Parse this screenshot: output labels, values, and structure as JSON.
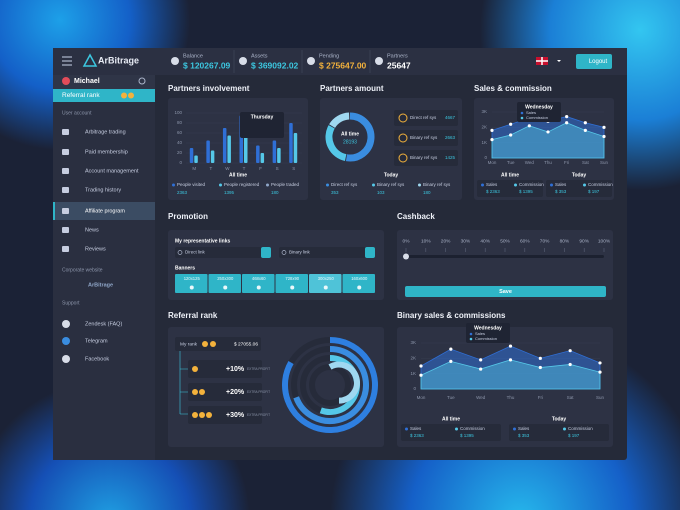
{
  "header": {
    "logo": "ArBitrage",
    "stats": [
      {
        "label": "Balance",
        "value": "$ 120267.09"
      },
      {
        "label": "Assets",
        "value": "$ 369092.02"
      },
      {
        "label": "Pending",
        "value": "$ 275647.00"
      },
      {
        "label": "Partners",
        "value": "25647"
      }
    ],
    "logout": "Logout"
  },
  "sidebar": {
    "user": "Michael",
    "rank": "Referral rank",
    "account_heading": "User account",
    "menu": [
      "Arbitrage trading",
      "Paid membership",
      "Account management",
      "Trading history",
      "Affiliate program",
      "News",
      "Reviews"
    ],
    "active": 4,
    "corporate_heading": "Corporate website",
    "corporate_link": "ArBitrage",
    "support_heading": "Support",
    "support": [
      "Zendesk (FAQ)",
      "Telegram",
      "Facebook"
    ]
  },
  "partners_involvement": {
    "title": "Partners involvement",
    "tooltip": "Thursday",
    "caption": "All time",
    "chart": {
      "type": "bar",
      "categories": [
        "M",
        "T",
        "W",
        "T",
        "F",
        "S",
        "S"
      ],
      "series": [
        {
          "color": "#2f6fd6",
          "values": [
            30,
            45,
            70,
            95,
            35,
            45,
            80
          ]
        },
        {
          "color": "#55c8e8",
          "values": [
            15,
            25,
            55,
            70,
            20,
            30,
            60
          ]
        }
      ],
      "ylim": [
        0,
        100
      ],
      "yticks": [
        0,
        20,
        40,
        60,
        80,
        100
      ]
    },
    "legend": [
      {
        "name": "People visited",
        "value": 2363
      },
      {
        "name": "People registered",
        "value": 1395
      },
      {
        "name": "People traded",
        "value": 180
      }
    ]
  },
  "partners_amount": {
    "title": "Partners amount",
    "donut_label": "All time",
    "donut_value": 28193,
    "items": [
      {
        "name": "Direct ref sys",
        "value": 4667
      },
      {
        "name": "Binary ref sys",
        "value": 2663
      },
      {
        "name": "Binary ref sys",
        "value": 1425
      }
    ],
    "caption": "Today",
    "legend": [
      {
        "name": "Direct ref sys",
        "value": 353
      },
      {
        "name": "Binary ref sys",
        "value": 103
      },
      {
        "name": "Binary ref sys",
        "value": 180
      }
    ]
  },
  "sales_commission": {
    "title": "Sales & commission",
    "tooltip": "Wednesday",
    "chart": {
      "type": "area",
      "categories": [
        "Mon",
        "Tue",
        "Wed",
        "Thu",
        "Fri",
        "Sat",
        "Sun"
      ],
      "series": [
        {
          "name": "Sales",
          "color": "#2f6fd6",
          "values": [
            1800,
            2200,
            2600,
            2400,
            2700,
            2300,
            2000
          ]
        },
        {
          "name": "Commission",
          "color": "#55c8e8",
          "values": [
            1200,
            1500,
            2100,
            1700,
            2300,
            1800,
            1400
          ]
        }
      ],
      "ylim": [
        0,
        3000
      ],
      "yticks": [
        0,
        {
          "value": 1000,
          "label": "1K"
        },
        {
          "value": 2000,
          "label": "2K"
        },
        {
          "value": 3000,
          "label": "3K"
        }
      ]
    },
    "summary": [
      {
        "caption": "All time",
        "items": [
          {
            "name": "Sales",
            "value": "$ 2363"
          },
          {
            "name": "Commission",
            "value": "$ 1395"
          }
        ]
      },
      {
        "caption": "Today",
        "items": [
          {
            "name": "Sales",
            "value": "$ 353"
          },
          {
            "name": "Commission",
            "value": "$ 197"
          }
        ]
      }
    ]
  },
  "promotion": {
    "title": "Promotion",
    "links_heading": "My representative links",
    "links": [
      "Direct link",
      "Binary link"
    ],
    "banners_heading": "Banners",
    "banners": [
      "120x125",
      "250x300",
      "468x60",
      "728x90",
      "300x250",
      "160x600"
    ]
  },
  "cashback": {
    "title": "Cashback",
    "scale": [
      {
        "value": 0,
        "label": "0%"
      },
      {
        "value": 10,
        "label": "10%"
      },
      {
        "value": 20,
        "label": "20%"
      },
      {
        "value": 30,
        "label": "30%"
      },
      {
        "value": 40,
        "label": "40%"
      },
      {
        "value": 50,
        "label": "50%"
      },
      {
        "value": 60,
        "label": "60%"
      },
      {
        "value": 70,
        "label": "70%"
      },
      {
        "value": 80,
        "label": "80%"
      },
      {
        "value": 90,
        "label": "90%"
      },
      {
        "value": 100,
        "label": "100%"
      }
    ],
    "button": "Save"
  },
  "referral_rank": {
    "title": "Referral rank",
    "my_rank_label": "My rank",
    "my_rank_value": "$ 27055.06",
    "levels": [
      "+10%",
      "+20%",
      "+30%"
    ],
    "level_note": "EXTRA PROFIT"
  },
  "binary_sales": {
    "title": "Binary sales & commissions",
    "tooltip": "Wednesday",
    "chart": {
      "type": "area",
      "categories": [
        "Mon",
        "Tue",
        "Wed",
        "Thu",
        "Fri",
        "Sat",
        "Sun"
      ],
      "series": [
        {
          "name": "Sales",
          "color": "#2f6fd6",
          "values": [
            1500,
            2600,
            1900,
            2800,
            2000,
            2500,
            1700
          ]
        },
        {
          "name": "Commission",
          "color": "#55c8e8",
          "values": [
            900,
            1800,
            1300,
            1900,
            1400,
            1600,
            1100
          ]
        }
      ],
      "ylim": [
        0,
        3000
      ],
      "yticks": [
        0,
        {
          "value": 1000,
          "label": "1K"
        },
        {
          "value": 2000,
          "label": "2K"
        },
        {
          "value": 3000,
          "label": "3K"
        }
      ]
    },
    "summary": [
      {
        "caption": "All time",
        "items": [
          {
            "name": "Sales",
            "value": "$ 2363"
          },
          {
            "name": "Commission",
            "value": "$ 1395"
          }
        ]
      },
      {
        "caption": "Today",
        "items": [
          {
            "name": "Sales",
            "value": "$ 353"
          },
          {
            "name": "Commission",
            "value": "$ 197"
          }
        ]
      }
    ]
  }
}
